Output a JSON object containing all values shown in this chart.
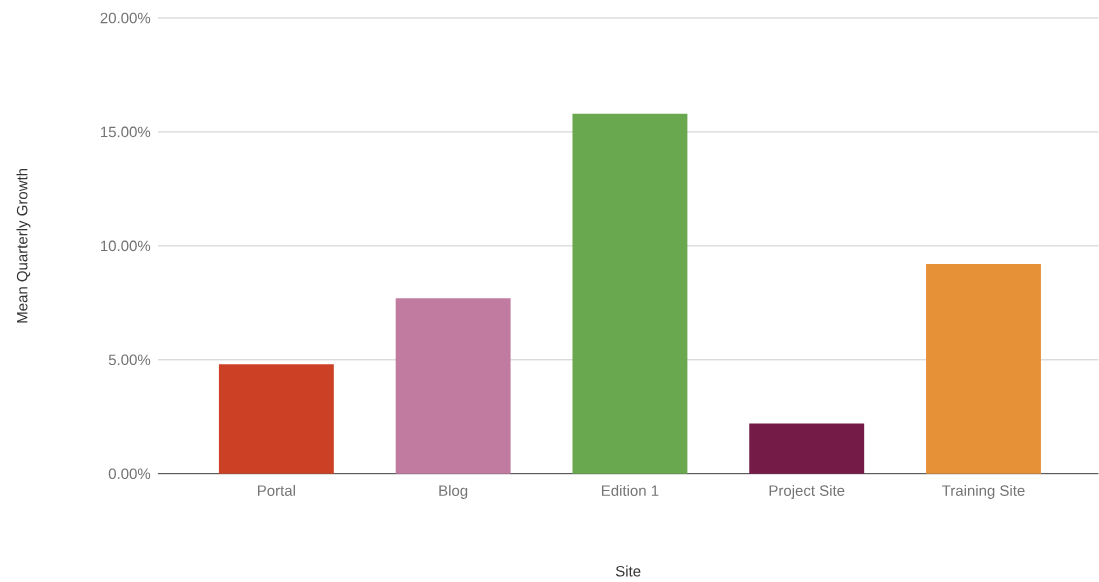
{
  "chart_data": {
    "type": "bar",
    "categories": [
      "Portal",
      "Blog",
      "Edition 1",
      "Project Site",
      "Training Site"
    ],
    "values": [
      4.8,
      7.7,
      15.8,
      2.2,
      9.2
    ],
    "colors": [
      "#cc4125",
      "#c27ba0",
      "#6aa84f",
      "#741b47",
      "#e69138"
    ],
    "xlabel": "Site",
    "ylabel": "Mean Quarterly Growth",
    "ylim": [
      0,
      20
    ],
    "yticks": [
      {
        "value": 0,
        "label": "0.00%"
      },
      {
        "value": 5,
        "label": "5.00%"
      },
      {
        "value": 10,
        "label": "10.00%"
      },
      {
        "value": 15,
        "label": "15.00%"
      },
      {
        "value": 20,
        "label": "20.00%"
      }
    ],
    "grid": "y"
  }
}
